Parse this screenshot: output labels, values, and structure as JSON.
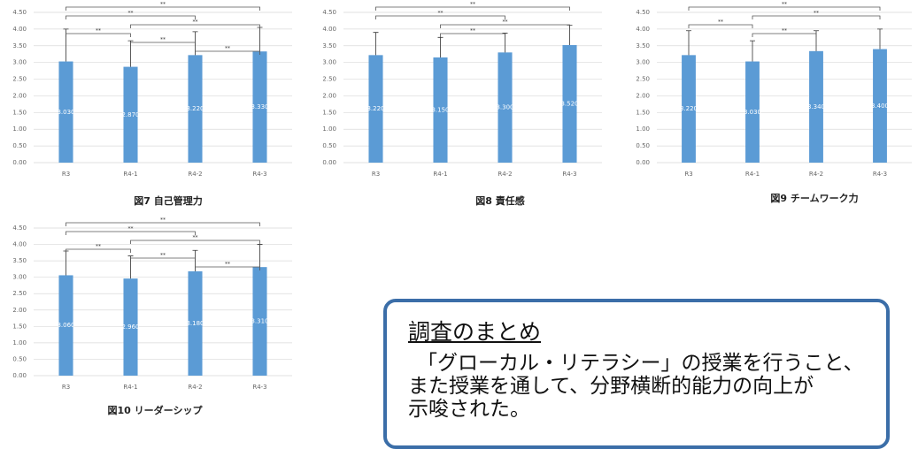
{
  "chart_data": [
    {
      "type": "bar",
      "title": "図7 自己管理力",
      "categories": [
        "R3",
        "R4-1",
        "R4-2",
        "R4-3"
      ],
      "values": [
        3.03,
        2.87,
        3.22,
        3.33
      ],
      "value_labels": [
        "3.030",
        "2.870",
        "3.220",
        "3.330"
      ],
      "errors": [
        0.97,
        0.78,
        0.7,
        0.72
      ],
      "color": "#5b9bd5",
      "ylim": [
        0,
        4.5
      ],
      "grid": true,
      "yticks": [
        {
          "value": 0,
          "label": "0.00"
        },
        {
          "value": 0.5,
          "label": "0.50"
        },
        {
          "value": 1,
          "label": "1.00"
        },
        {
          "value": 1.5,
          "label": "1.50"
        },
        {
          "value": 2,
          "label": "2.00"
        },
        {
          "value": 2.5,
          "label": "2.50"
        },
        {
          "value": 3,
          "label": "3.00"
        },
        {
          "value": 3.5,
          "label": "3.50"
        },
        {
          "value": 4,
          "label": "4.00"
        },
        {
          "value": 4.5,
          "label": "4.50"
        }
      ],
      "annotations": [
        {
          "between": [
            "R3",
            "R4-3"
          ],
          "label": "**"
        },
        {
          "between": [
            "R3",
            "R4-2"
          ],
          "label": "**"
        },
        {
          "between": [
            "R4-1",
            "R4-3"
          ],
          "label": "**"
        },
        {
          "between": [
            "R3",
            "R4-1"
          ],
          "label": "**"
        },
        {
          "between": [
            "R4-1",
            "R4-2"
          ],
          "label": "**"
        },
        {
          "between": [
            "R4-2",
            "R4-3"
          ],
          "label": "**"
        }
      ]
    },
    {
      "type": "bar",
      "title": "図8 責任感",
      "categories": [
        "R3",
        "R4-1",
        "R4-2",
        "R4-3"
      ],
      "values": [
        3.22,
        3.15,
        3.3,
        3.52
      ],
      "value_labels": [
        "3.220",
        "3.150",
        "3.300",
        "3.520"
      ],
      "errors": [
        0.68,
        0.6,
        0.58,
        0.6
      ],
      "color": "#5b9bd5",
      "ylim": [
        0,
        4.5
      ],
      "grid": true,
      "yticks": [
        {
          "value": 0,
          "label": "0.00"
        },
        {
          "value": 0.5,
          "label": "0.50"
        },
        {
          "value": 1,
          "label": "1.00"
        },
        {
          "value": 1.5,
          "label": "1.50"
        },
        {
          "value": 2,
          "label": "2.00"
        },
        {
          "value": 2.5,
          "label": "2.50"
        },
        {
          "value": 3,
          "label": "3.00"
        },
        {
          "value": 3.5,
          "label": "3.50"
        },
        {
          "value": 4,
          "label": "4.00"
        },
        {
          "value": 4.5,
          "label": "4.50"
        }
      ],
      "annotations": [
        {
          "between": [
            "R3",
            "R4-3"
          ],
          "label": "**"
        },
        {
          "between": [
            "R3",
            "R4-2"
          ],
          "label": "**"
        },
        {
          "between": [
            "R4-1",
            "R4-3"
          ],
          "label": "**"
        },
        {
          "between": [
            "R4-1",
            "R4-2"
          ],
          "label": "**"
        }
      ]
    },
    {
      "type": "bar",
      "title": "図9 チームワーク力",
      "categories": [
        "R3",
        "R4-1",
        "R4-2",
        "R4-3"
      ],
      "values": [
        3.22,
        3.03,
        3.34,
        3.4
      ],
      "value_labels": [
        "3.220",
        "3.030",
        "3.340",
        "3.400"
      ],
      "errors": [
        0.73,
        0.62,
        0.61,
        0.6
      ],
      "color": "#5b9bd5",
      "ylim": [
        0,
        4.5
      ],
      "grid": true,
      "yticks": [
        {
          "value": 0,
          "label": "0.00"
        },
        {
          "value": 0.5,
          "label": "0.50"
        },
        {
          "value": 1,
          "label": "1.00"
        },
        {
          "value": 1.5,
          "label": "1.50"
        },
        {
          "value": 2,
          "label": "2.00"
        },
        {
          "value": 2.5,
          "label": "2.50"
        },
        {
          "value": 3,
          "label": "3.00"
        },
        {
          "value": 3.5,
          "label": "3.50"
        },
        {
          "value": 4,
          "label": "4.00"
        },
        {
          "value": 4.5,
          "label": "4.50"
        }
      ],
      "annotations": [
        {
          "between": [
            "R3",
            "R4-3"
          ],
          "label": "**"
        },
        {
          "between": [
            "R4-1",
            "R4-3"
          ],
          "label": "**"
        },
        {
          "between": [
            "R3",
            "R4-1"
          ],
          "label": "**"
        },
        {
          "between": [
            "R4-1",
            "R4-2"
          ],
          "label": "**"
        }
      ]
    },
    {
      "type": "bar",
      "title": "図10 リーダーシップ",
      "categories": [
        "R3",
        "R4-1",
        "R4-2",
        "R4-3"
      ],
      "values": [
        3.06,
        2.96,
        3.18,
        3.31
      ],
      "value_labels": [
        "3.060",
        "2.960",
        "3.180",
        "3.310"
      ],
      "errors": [
        0.74,
        0.69,
        0.64,
        0.69
      ],
      "color": "#5b9bd5",
      "ylim": [
        0,
        4.5
      ],
      "grid": true,
      "yticks": [
        {
          "value": 0,
          "label": "0.00"
        },
        {
          "value": 0.5,
          "label": "0.50"
        },
        {
          "value": 1,
          "label": "1.00"
        },
        {
          "value": 1.5,
          "label": "1.50"
        },
        {
          "value": 2,
          "label": "2.00"
        },
        {
          "value": 2.5,
          "label": "2.50"
        },
        {
          "value": 3,
          "label": "3.00"
        },
        {
          "value": 3.5,
          "label": "3.50"
        },
        {
          "value": 4,
          "label": "4.00"
        },
        {
          "value": 4.5,
          "label": "4.50"
        }
      ],
      "annotations": [
        {
          "between": [
            "R3",
            "R4-3"
          ],
          "label": "**"
        },
        {
          "between": [
            "R3",
            "R4-2"
          ],
          "label": "**"
        },
        {
          "between": [
            "R4-1",
            "R4-3"
          ],
          "label": "**"
        },
        {
          "between": [
            "R3",
            "R4-1"
          ],
          "label": "**"
        },
        {
          "between": [
            "R4-1",
            "R4-2"
          ],
          "label": "**"
        },
        {
          "between": [
            "R4-2",
            "R4-3"
          ],
          "label": "**"
        }
      ]
    }
  ],
  "summary": {
    "heading": "調査のまとめ",
    "lines": [
      "「グローカル・リテラシー」の授業を行うこと、",
      "また授業を通して、分野横断的能力の向上が",
      "示唆された。"
    ]
  }
}
